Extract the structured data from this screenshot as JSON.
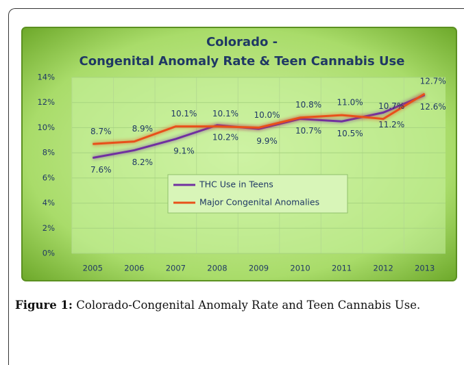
{
  "chart_data": {
    "type": "line",
    "title": "Colorado -",
    "subtitle": "Congenital Anomaly Rate & Teen Cannabis Use",
    "categories": [
      "2005",
      "2006",
      "2007",
      "2008",
      "2009",
      "2010",
      "2011",
      "2012",
      "2013"
    ],
    "series": [
      {
        "name": "THC Use in Teens",
        "color": "#7030a0",
        "values": [
          7.6,
          8.2,
          9.1,
          10.2,
          9.9,
          10.7,
          10.5,
          11.2,
          12.6
        ],
        "value_labels": [
          "7.6%",
          "8.2%",
          "9.1%",
          "10.2%",
          "9.9%",
          "10.7%",
          "10.5%",
          "11.2%",
          "12.6%"
        ]
      },
      {
        "name": "Major Congenital Anomalies",
        "color": "#e8501a",
        "values": [
          8.7,
          8.9,
          10.1,
          10.1,
          10.0,
          10.8,
          11.0,
          10.7,
          12.7
        ],
        "value_labels": [
          "8.7%",
          "8.9%",
          "10.1%",
          "10.1%",
          "10.0%",
          "10.8%",
          "11.0%",
          "10.7%",
          "12.7%"
        ]
      }
    ],
    "ylim": [
      0,
      14
    ],
    "yticks": [
      {
        "value": 0,
        "label": "0%"
      },
      {
        "value": 2,
        "label": "2%"
      },
      {
        "value": 4,
        "label": "4%"
      },
      {
        "value": 6,
        "label": "6%"
      },
      {
        "value": 8,
        "label": "8%"
      },
      {
        "value": 10,
        "label": "10%"
      },
      {
        "value": 12,
        "label": "12%"
      },
      {
        "value": 14,
        "label": "14%"
      }
    ],
    "grid": true,
    "legend": "center"
  },
  "caption": {
    "label": "Figure 1:",
    "text": "Colorado-Congenital Anomaly Rate and Teen Cannabis Use."
  }
}
